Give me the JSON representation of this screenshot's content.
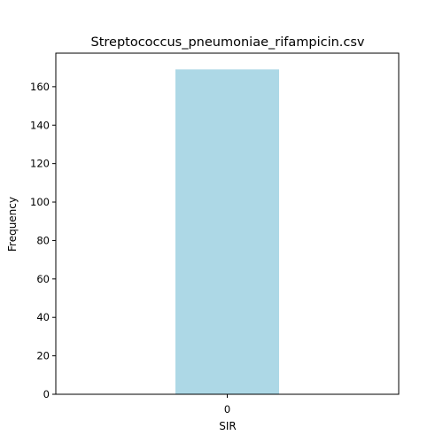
{
  "colors": {
    "bar": "#add8e6",
    "axis": "#000000",
    "background": "#ffffff"
  },
  "chart_data": {
    "type": "bar",
    "title": "Streptococcus_pneumoniae_rifampicin.csv",
    "xlabel": "SIR",
    "ylabel": "Frequency",
    "categories": [
      "0"
    ],
    "values": [
      169
    ],
    "ylim": [
      0,
      177.45
    ],
    "yticks": [
      0,
      20,
      40,
      60,
      80,
      100,
      120,
      140,
      160
    ],
    "grid": false,
    "legend": "none"
  }
}
